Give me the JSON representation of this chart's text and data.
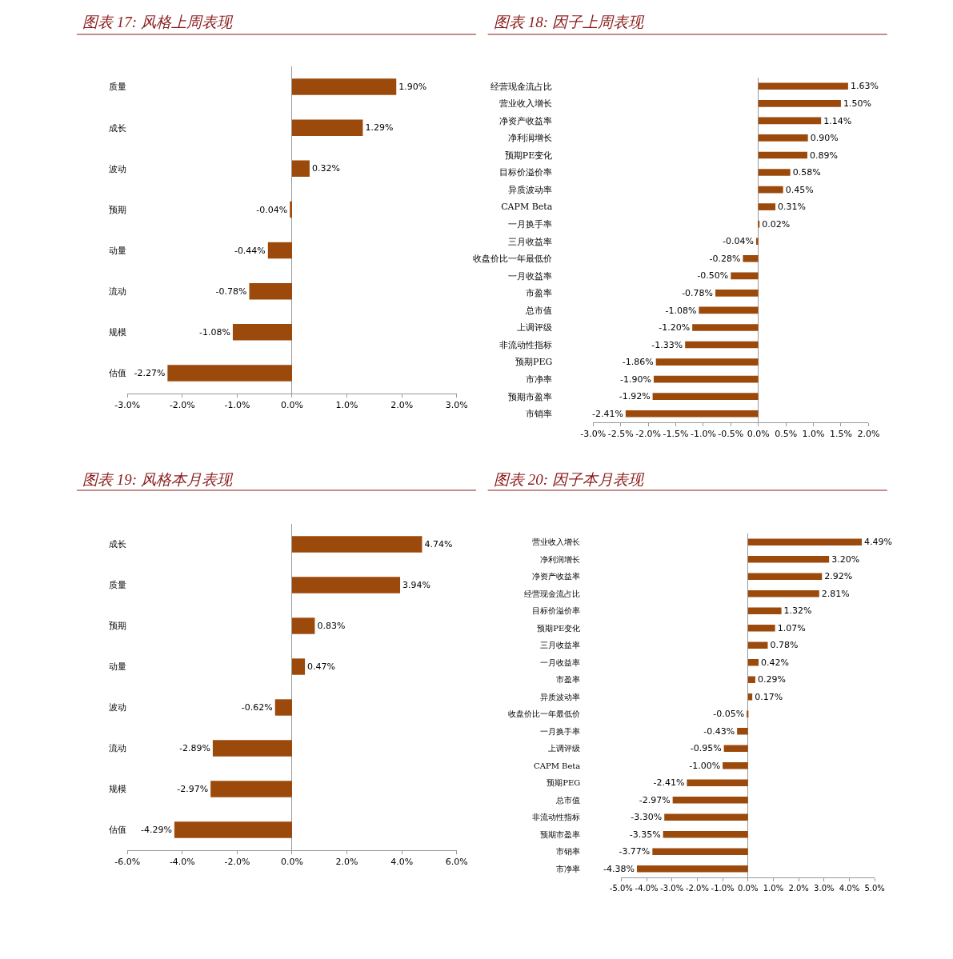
{
  "chart_data": [
    {
      "type": "bar",
      "orientation": "horizontal",
      "title": "图表 17: 风格上周表现",
      "color": "#9c4a0c",
      "categories": [
        "质量",
        "成长",
        "波动",
        "预期",
        "动量",
        "流动",
        "规模",
        "估值"
      ],
      "values": [
        1.9,
        1.29,
        0.32,
        -0.04,
        -0.44,
        -0.78,
        -1.08,
        -2.27
      ],
      "value_labels": [
        "1.90%",
        "1.29%",
        "0.32%",
        "-0.04%",
        "-0.44%",
        "-0.78%",
        "-1.08%",
        "-2.27%"
      ],
      "xlim": [
        -3,
        3
      ],
      "xticks": [
        {
          "value": -3,
          "label": "-3.0%"
        },
        {
          "value": -2,
          "label": "-2.0%"
        },
        {
          "value": -1,
          "label": "-1.0%"
        },
        {
          "value": 0,
          "label": "0.0%"
        },
        {
          "value": 1,
          "label": "1.0%"
        },
        {
          "value": 2,
          "label": "2.0%"
        },
        {
          "value": 3,
          "label": "3.0%"
        }
      ]
    },
    {
      "type": "bar",
      "orientation": "horizontal",
      "title": "图表 18: 因子上周表现",
      "color": "#9c4a0c",
      "categories": [
        "经营现金流占比",
        "营业收入增长",
        "净资产收益率",
        "净利润增长",
        "预期PE变化",
        "目标价溢价率",
        "异质波动率",
        "CAPM Beta",
        "一月换手率",
        "三月收益率",
        "收盘价比一年最低价",
        "一月收益率",
        "市盈率",
        "总市值",
        "上调评级",
        "非流动性指标",
        "预期PEG",
        "市净率",
        "预期市盈率",
        "市销率"
      ],
      "values": [
        1.63,
        1.5,
        1.14,
        0.9,
        0.89,
        0.58,
        0.45,
        0.31,
        0.02,
        -0.04,
        -0.28,
        -0.5,
        -0.78,
        -1.08,
        -1.2,
        -1.33,
        -1.86,
        -1.9,
        -1.92,
        -2.41
      ],
      "value_labels": [
        "1.63%",
        "1.50%",
        "1.14%",
        "0.90%",
        "0.89%",
        "0.58%",
        "0.45%",
        "0.31%",
        "0.02%",
        "-0.04%",
        "-0.28%",
        "-0.50%",
        "-0.78%",
        "-1.08%",
        "-1.20%",
        "-1.33%",
        "-1.86%",
        "-1.90%",
        "-1.92%",
        "-2.41%"
      ],
      "xlim": [
        -3,
        2
      ],
      "xticks": [
        {
          "value": -3,
          "label": "-3.0%"
        },
        {
          "value": -2.5,
          "label": "-2.5%"
        },
        {
          "value": -2,
          "label": "-2.0%"
        },
        {
          "value": -1.5,
          "label": "-1.5%"
        },
        {
          "value": -1,
          "label": "-1.0%"
        },
        {
          "value": -0.5,
          "label": "-0.5%"
        },
        {
          "value": 0,
          "label": "0.0%"
        },
        {
          "value": 0.5,
          "label": "0.5%"
        },
        {
          "value": 1,
          "label": "1.0%"
        },
        {
          "value": 1.5,
          "label": "1.5%"
        },
        {
          "value": 2,
          "label": "2.0%"
        }
      ]
    },
    {
      "type": "bar",
      "orientation": "horizontal",
      "title": "图表 19: 风格本月表现",
      "color": "#9c4a0c",
      "categories": [
        "成长",
        "质量",
        "预期",
        "动量",
        "波动",
        "流动",
        "规模",
        "估值"
      ],
      "values": [
        4.74,
        3.94,
        0.83,
        0.47,
        -0.62,
        -2.89,
        -2.97,
        -4.29
      ],
      "value_labels": [
        "4.74%",
        "3.94%",
        "0.83%",
        "0.47%",
        "-0.62%",
        "-2.89%",
        "-2.97%",
        "-4.29%"
      ],
      "xlim": [
        -6,
        6
      ],
      "xticks": [
        {
          "value": -6,
          "label": "-6.0%"
        },
        {
          "value": -4,
          "label": "-4.0%"
        },
        {
          "value": -2,
          "label": "-2.0%"
        },
        {
          "value": 0,
          "label": "0.0%"
        },
        {
          "value": 2,
          "label": "2.0%"
        },
        {
          "value": 4,
          "label": "4.0%"
        },
        {
          "value": 6,
          "label": "6.0%"
        }
      ]
    },
    {
      "type": "bar",
      "orientation": "horizontal",
      "title": "图表 20: 因子本月表现",
      "color": "#9c4a0c",
      "categories": [
        "营业收入增长",
        "净利润增长",
        "净资产收益率",
        "经营现金流占比",
        "目标价溢价率",
        "预期PE变化",
        "三月收益率",
        "一月收益率",
        "市盈率",
        "异质波动率",
        "收盘价比一年最低价",
        "一月换手率",
        "上调评级",
        "CAPM Beta",
        "预期PEG",
        "总市值",
        "非流动性指标",
        "预期市盈率",
        "市销率",
        "市净率"
      ],
      "values": [
        4.49,
        3.2,
        2.92,
        2.81,
        1.32,
        1.07,
        0.78,
        0.42,
        0.29,
        0.17,
        -0.05,
        -0.43,
        -0.95,
        -1.0,
        -2.41,
        -2.97,
        -3.3,
        -3.35,
        -3.77,
        -4.38
      ],
      "value_labels": [
        "4.49%",
        "3.20%",
        "2.92%",
        "2.81%",
        "1.32%",
        "1.07%",
        "0.78%",
        "0.42%",
        "0.29%",
        "0.17%",
        "-0.05%",
        "-0.43%",
        "-0.95%",
        "-1.00%",
        "-2.41%",
        "-2.97%",
        "-3.30%",
        "-3.35%",
        "-3.77%",
        "-4.38%"
      ],
      "xlim": [
        -5,
        5
      ],
      "xticks": [
        {
          "value": -5,
          "label": "-5.0%"
        },
        {
          "value": -4,
          "label": "-4.0%"
        },
        {
          "value": -3,
          "label": "-3.0%"
        },
        {
          "value": -2,
          "label": "-2.0%"
        },
        {
          "value": -1,
          "label": "-1.0%"
        },
        {
          "value": 0,
          "label": "0.0%"
        },
        {
          "value": 1,
          "label": "1.0%"
        },
        {
          "value": 2,
          "label": "2.0%"
        },
        {
          "value": 3,
          "label": "3.0%"
        },
        {
          "value": 4,
          "label": "4.0%"
        },
        {
          "value": 5,
          "label": "5.0%"
        }
      ]
    }
  ]
}
